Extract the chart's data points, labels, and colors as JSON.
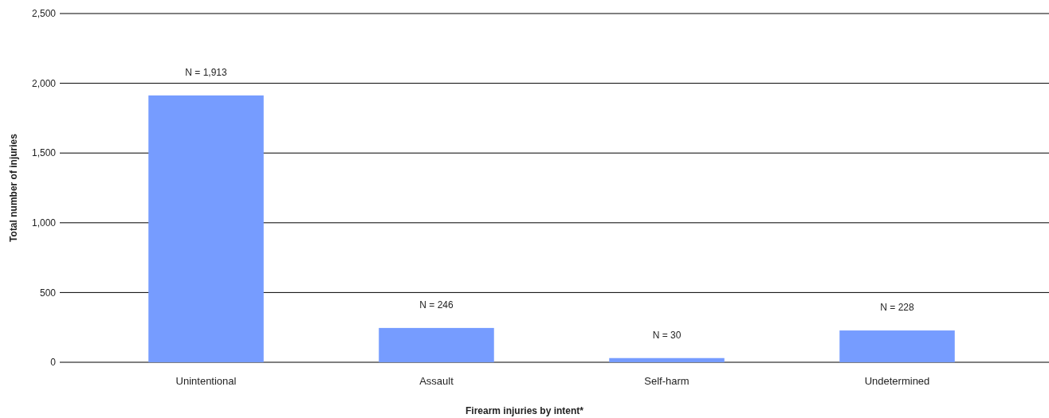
{
  "chart_data": {
    "type": "bar",
    "xlabel": "Firearm injuries by intent*",
    "ylabel": "Total number of injuries",
    "categories": [
      "Unintentional",
      "Assault",
      "Self-harm",
      "Undetermined"
    ],
    "values": [
      1913,
      246,
      30,
      228
    ],
    "value_labels": [
      "N = 1,913",
      "N = 246",
      "N = 30",
      "N = 228"
    ],
    "color": "#769cff",
    "ylim": [
      0,
      2500
    ],
    "yticks": [
      {
        "value": 0,
        "label": "0"
      },
      {
        "value": 500,
        "label": "500"
      },
      {
        "value": 1000,
        "label": "1,000"
      },
      {
        "value": 1500,
        "label": "1,500"
      },
      {
        "value": 2000,
        "label": "2,000"
      },
      {
        "value": 2500,
        "label": "2,500"
      }
    ],
    "grid": "y"
  }
}
